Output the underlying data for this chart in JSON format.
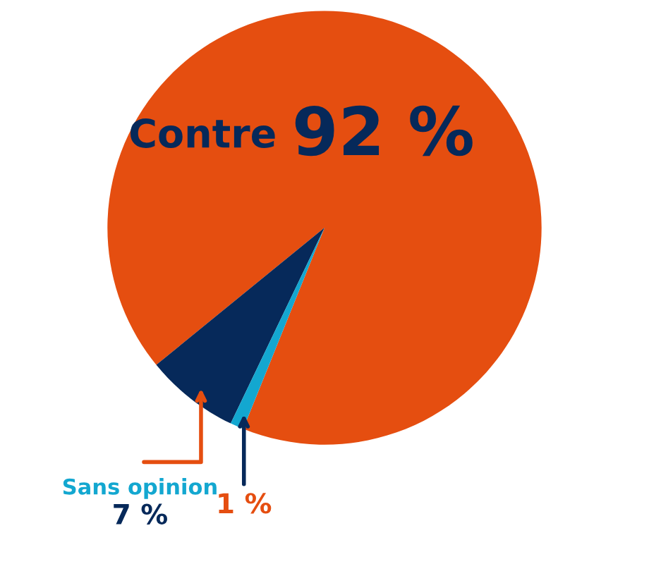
{
  "chart_data": {
    "type": "pie",
    "categories": [
      "Contre",
      "Sans opinion",
      null
    ],
    "values": [
      92,
      7,
      1
    ],
    "colors": [
      "#e54e10",
      "#06295a",
      "#13a7d0"
    ],
    "value_labels": [
      "92 %",
      "7 %",
      "1 %"
    ]
  }
}
